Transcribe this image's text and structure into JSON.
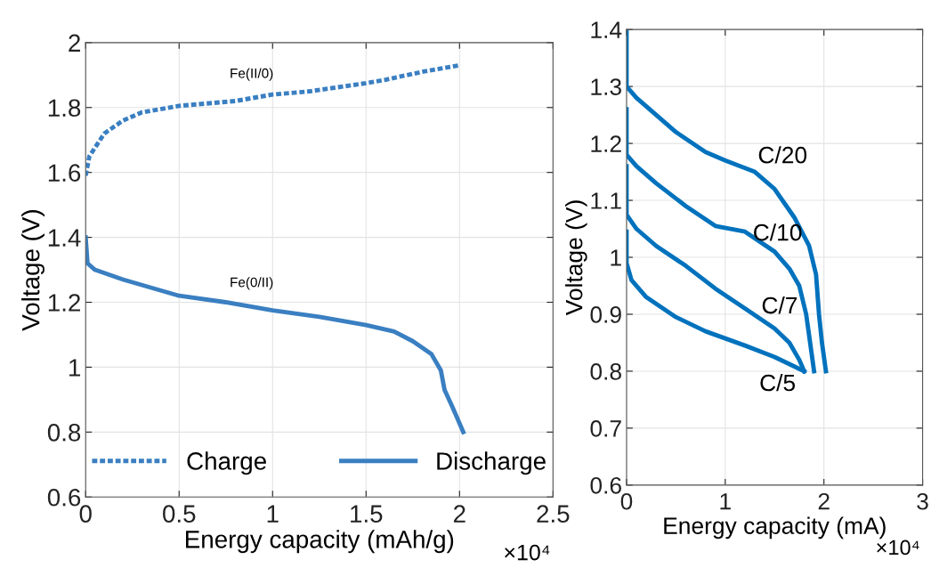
{
  "chart_data": [
    {
      "type": "line",
      "xlabel": "Energy capacity (mAh/g)",
      "ylabel": "Voltage (V)",
      "xlim": [
        0,
        2.5
      ],
      "xticks": [
        0,
        0.5,
        1,
        1.5,
        2,
        2.5
      ],
      "ylim": [
        0.6,
        2
      ],
      "yticks": [
        0.6,
        0.8,
        1,
        1.2,
        1.4,
        1.6,
        1.8,
        2
      ],
      "grid": true,
      "legend": "bottom",
      "series": [
        {
          "name": "Charge",
          "color": "#3a7fc1",
          "line_style": "dashed",
          "x": [
            0,
            0.02,
            0.1,
            0.2,
            0.3,
            0.5,
            0.8,
            1.0,
            1.2,
            1.5,
            1.6,
            1.8,
            2.0
          ],
          "values": [
            1.59,
            1.65,
            1.72,
            1.76,
            1.785,
            1.805,
            1.82,
            1.84,
            1.85,
            1.875,
            1.885,
            1.91,
            1.93
          ]
        },
        {
          "name": "Discharge",
          "color": "#3a7fc1",
          "line_style": "solid",
          "x": [
            0,
            0.01,
            0.05,
            0.2,
            0.5,
            0.75,
            1.0,
            1.25,
            1.5,
            1.65,
            1.75,
            1.85,
            1.9,
            1.92,
            1.96,
            2.02
          ],
          "values": [
            1.4,
            1.32,
            1.3,
            1.27,
            1.22,
            1.2,
            1.175,
            1.155,
            1.13,
            1.11,
            1.08,
            1.04,
            0.99,
            0.93,
            0.88,
            0.8
          ]
        }
      ],
      "annotations": [
        "Fe(II/0)",
        "Fe(0/II)",
        "×10⁴"
      ]
    },
    {
      "type": "line",
      "xlabel": "Energy capacity (mA)",
      "ylabel": "Voltage (V)",
      "xlim": [
        0,
        3
      ],
      "xticks": [
        0,
        1,
        2,
        3
      ],
      "ylim": [
        0.6,
        1.4
      ],
      "yticks": [
        0.6,
        0.7,
        0.8,
        0.9,
        1,
        1.1,
        1.2,
        1.3,
        1.4
      ],
      "grid": true,
      "line_style": "solid",
      "series": [
        {
          "color": "#0072bd",
          "x": [
            0,
            0,
            0.1,
            0.3,
            0.5,
            0.8,
            1.0,
            1.3,
            1.5,
            1.7,
            1.85,
            1.92,
            1.95,
            1.98,
            2.02
          ],
          "values": [
            1.4,
            1.3,
            1.28,
            1.25,
            1.22,
            1.185,
            1.17,
            1.15,
            1.12,
            1.07,
            1.02,
            0.97,
            0.9,
            0.85,
            0.8
          ]
        },
        {
          "color": "#0072bd",
          "x": [
            0,
            0,
            0.1,
            0.3,
            0.6,
            0.9,
            1.2,
            1.5,
            1.65,
            1.75,
            1.82,
            1.86,
            1.9
          ],
          "values": [
            1.26,
            1.18,
            1.16,
            1.13,
            1.09,
            1.055,
            1.045,
            1.01,
            0.98,
            0.95,
            0.9,
            0.85,
            0.8
          ]
        },
        {
          "color": "#0072bd",
          "x": [
            0,
            0,
            0.1,
            0.3,
            0.6,
            0.9,
            1.2,
            1.5,
            1.65,
            1.75,
            1.8
          ],
          "values": [
            1.16,
            1.075,
            1.05,
            1.02,
            0.985,
            0.945,
            0.91,
            0.875,
            0.85,
            0.82,
            0.8
          ]
        },
        {
          "color": "#0072bd",
          "x": [
            0,
            0,
            0.05,
            0.2,
            0.5,
            0.8,
            1.2,
            1.5,
            1.8
          ],
          "values": [
            1.045,
            0.99,
            0.96,
            0.93,
            0.895,
            0.87,
            0.845,
            0.825,
            0.8
          ]
        }
      ],
      "annotations": [
        "C/20",
        "C/10",
        "C/7",
        "C/5",
        "×10⁴"
      ]
    }
  ]
}
